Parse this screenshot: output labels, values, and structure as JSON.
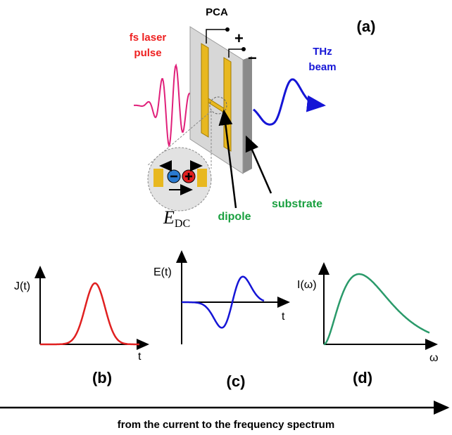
{
  "panel_a": {
    "label": "(a)",
    "pca": "PCA",
    "laser": [
      "fs laser",
      "pulse"
    ],
    "thz": [
      "THz",
      "beam"
    ],
    "plus": "+",
    "minus": "−",
    "edc": {
      "symbol": "E",
      "subscript": "DC"
    },
    "dipole": "dipole",
    "substrate": "substrate"
  },
  "plots": [
    {
      "y_label": "J(t)",
      "x_label": "t",
      "label": "(b)"
    },
    {
      "y_label": "E(t)",
      "x_label": "t",
      "label": "(c)"
    },
    {
      "y_label": "I(ω)",
      "x_label": "ω",
      "label": "(d)"
    }
  ],
  "caption": "from the current to the frequency spectrum"
}
